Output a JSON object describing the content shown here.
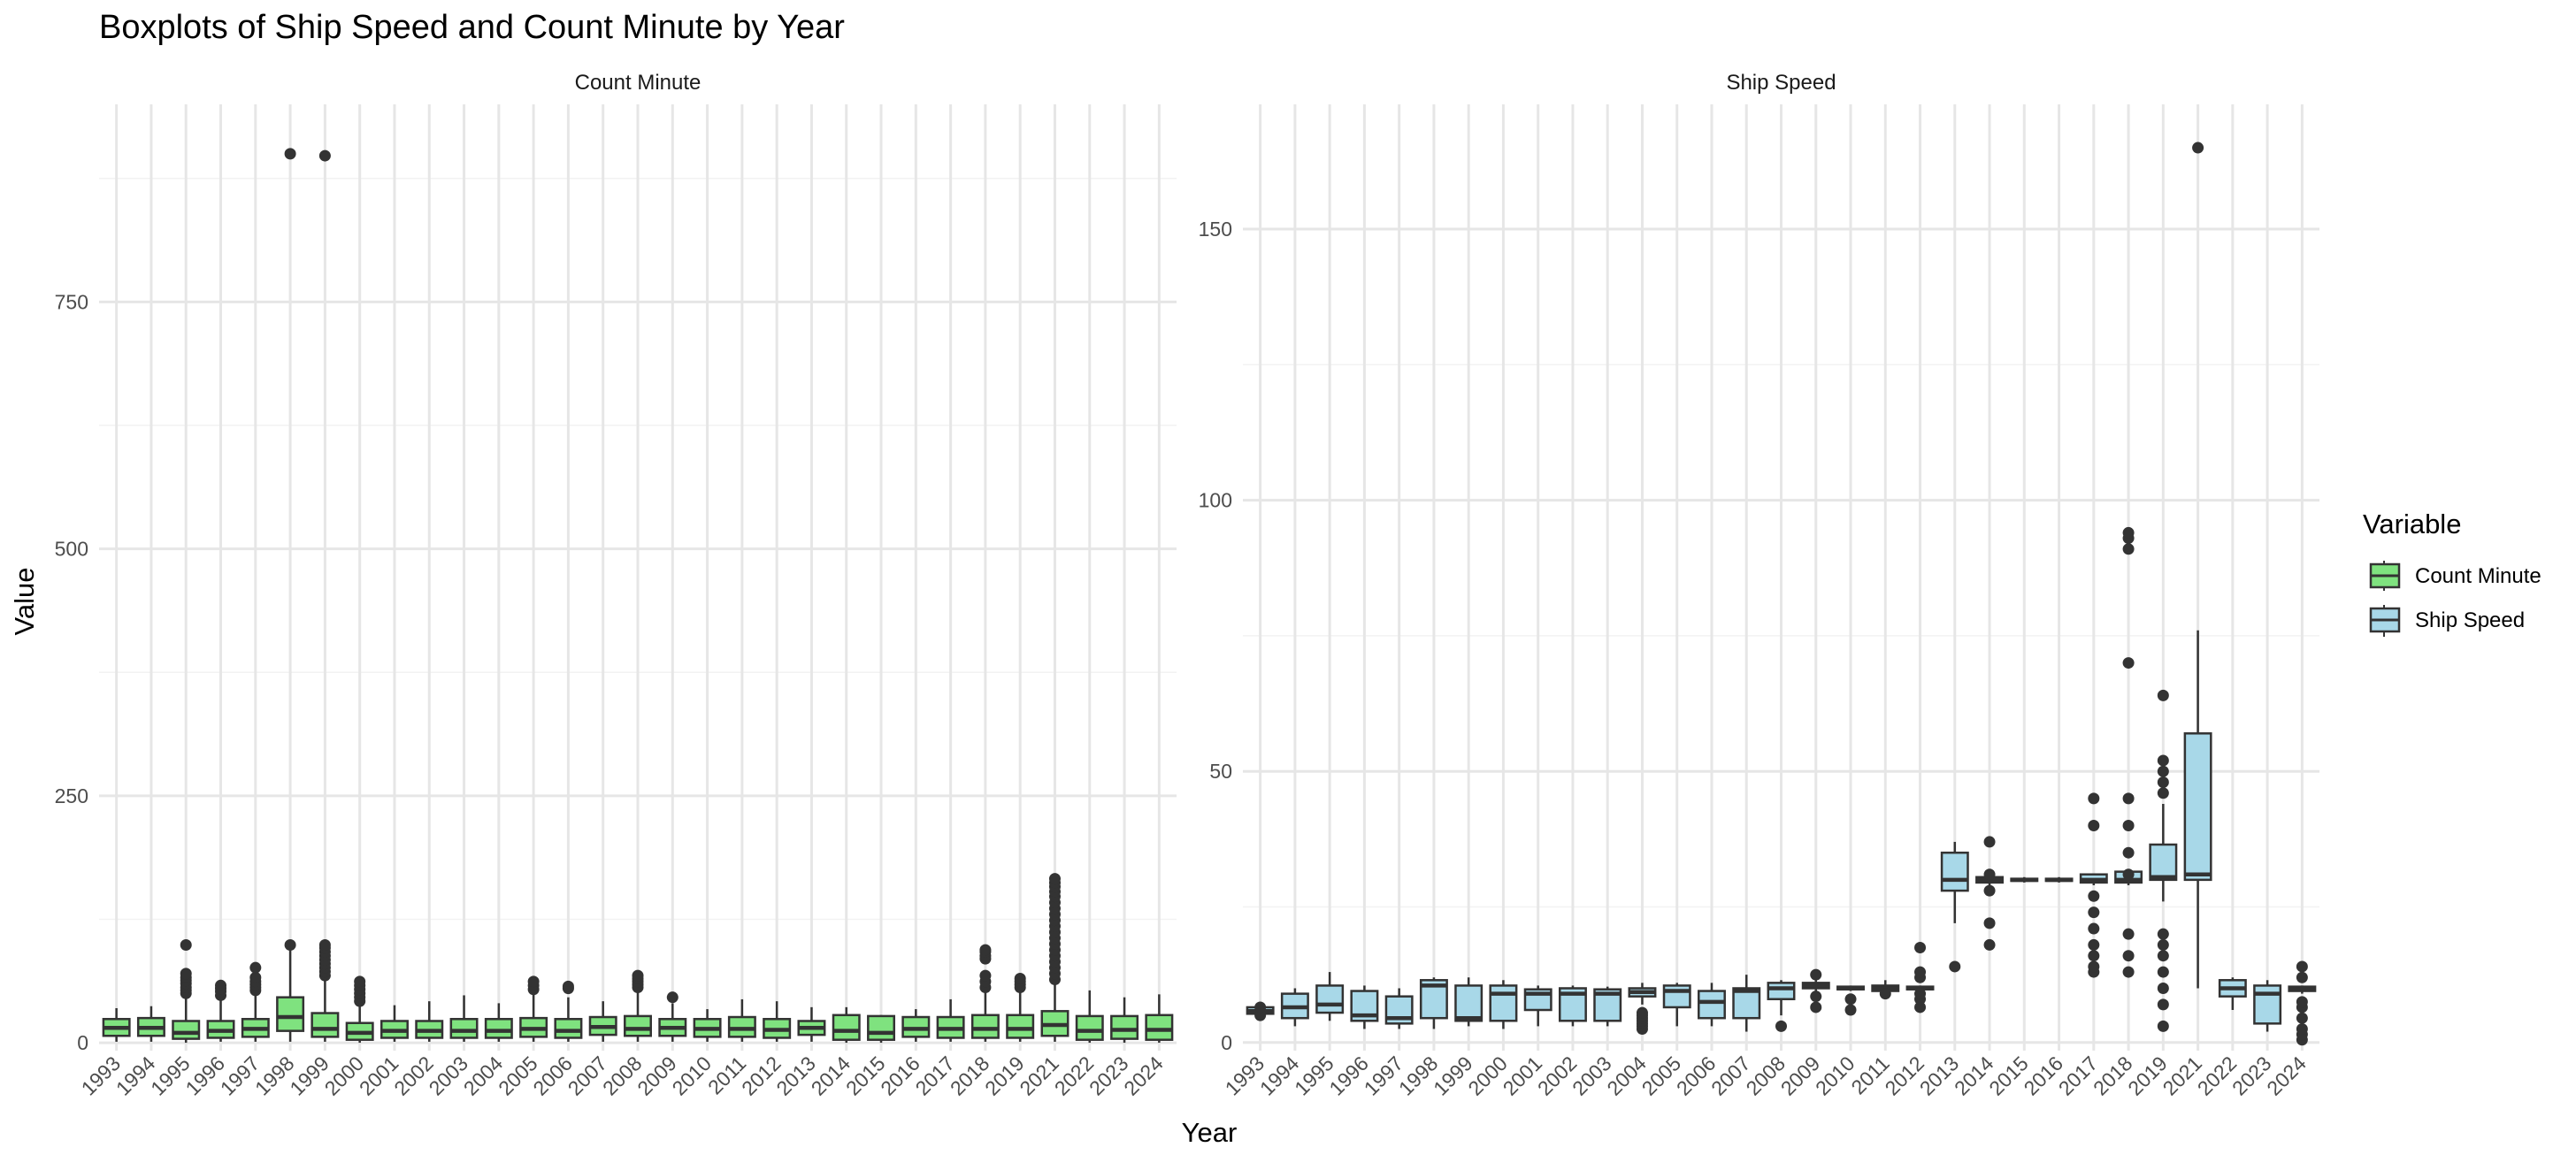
{
  "title": "Boxplots of Ship Speed and Count Minute by Year",
  "xlabel": "Year",
  "ylabel": "Value",
  "legend": {
    "title": "Variable",
    "placement": "right",
    "items": [
      {
        "label": "Count Minute",
        "color": "#7fe27f"
      },
      {
        "label": "Ship Speed",
        "color": "#a8d8e8"
      }
    ]
  },
  "chart_data": [
    {
      "type": "boxplot",
      "facet": "Count Minute",
      "fill": "#7fe27f",
      "ylim": [
        -8,
        950
      ],
      "yticks": [
        0,
        250,
        500,
        750
      ],
      "categories": [
        "1993",
        "1994",
        "1995",
        "1996",
        "1997",
        "1998",
        "1999",
        "2000",
        "2001",
        "2002",
        "2003",
        "2004",
        "2005",
        "2006",
        "2007",
        "2008",
        "2009",
        "2010",
        "2011",
        "2012",
        "2013",
        "2014",
        "2015",
        "2016",
        "2017",
        "2018",
        "2019",
        "2021",
        "2022",
        "2023",
        "2024"
      ],
      "boxes": [
        {
          "q1": 7,
          "median": 15,
          "q3": 24,
          "lo": 1,
          "hi": 35,
          "outliers": []
        },
        {
          "q1": 7,
          "median": 15,
          "q3": 25,
          "lo": 1,
          "hi": 37,
          "outliers": []
        },
        {
          "q1": 4,
          "median": 10,
          "q3": 22,
          "lo": 0,
          "hi": 46,
          "outliers": [
            50,
            53,
            56,
            60,
            63,
            66,
            70,
            99
          ]
        },
        {
          "q1": 5,
          "median": 12,
          "q3": 22,
          "lo": 1,
          "hi": 45,
          "outliers": [
            48,
            52,
            55,
            58
          ]
        },
        {
          "q1": 6,
          "median": 14,
          "q3": 24,
          "lo": 1,
          "hi": 50,
          "outliers": [
            53,
            56,
            59,
            62,
            66,
            76
          ]
        },
        {
          "q1": 12,
          "median": 26,
          "q3": 46,
          "lo": 1,
          "hi": 95,
          "outliers": [
            99,
            900
          ]
        },
        {
          "q1": 6,
          "median": 14,
          "q3": 30,
          "lo": 1,
          "hi": 65,
          "outliers": [
            68,
            72,
            76,
            80,
            84,
            88,
            92,
            96,
            99,
            898
          ]
        },
        {
          "q1": 3,
          "median": 10,
          "q3": 20,
          "lo": 0,
          "hi": 38,
          "outliers": [
            42,
            46,
            50,
            54,
            58,
            62
          ]
        },
        {
          "q1": 5,
          "median": 12,
          "q3": 22,
          "lo": 1,
          "hi": 38,
          "outliers": []
        },
        {
          "q1": 5,
          "median": 12,
          "q3": 22,
          "lo": 1,
          "hi": 42,
          "outliers": []
        },
        {
          "q1": 5,
          "median": 12,
          "q3": 24,
          "lo": 1,
          "hi": 48,
          "outliers": []
        },
        {
          "q1": 5,
          "median": 12,
          "q3": 24,
          "lo": 1,
          "hi": 40,
          "outliers": []
        },
        {
          "q1": 6,
          "median": 14,
          "q3": 25,
          "lo": 1,
          "hi": 50,
          "outliers": [
            54,
            58,
            62
          ]
        },
        {
          "q1": 5,
          "median": 12,
          "q3": 24,
          "lo": 1,
          "hi": 46,
          "outliers": [
            55,
            57
          ]
        },
        {
          "q1": 8,
          "median": 16,
          "q3": 26,
          "lo": 1,
          "hi": 42,
          "outliers": []
        },
        {
          "q1": 7,
          "median": 14,
          "q3": 27,
          "lo": 1,
          "hi": 54,
          "outliers": [
            56,
            59,
            62,
            65,
            68
          ]
        },
        {
          "q1": 7,
          "median": 15,
          "q3": 24,
          "lo": 1,
          "hi": 40,
          "outliers": [
            46
          ]
        },
        {
          "q1": 6,
          "median": 14,
          "q3": 24,
          "lo": 1,
          "hi": 34,
          "outliers": []
        },
        {
          "q1": 6,
          "median": 14,
          "q3": 26,
          "lo": 1,
          "hi": 44,
          "outliers": []
        },
        {
          "q1": 5,
          "median": 13,
          "q3": 24,
          "lo": 1,
          "hi": 42,
          "outliers": []
        },
        {
          "q1": 8,
          "median": 15,
          "q3": 22,
          "lo": 1,
          "hi": 36,
          "outliers": []
        },
        {
          "q1": 3,
          "median": 12,
          "q3": 28,
          "lo": 0,
          "hi": 36,
          "outliers": []
        },
        {
          "q1": 3,
          "median": 10,
          "q3": 27,
          "lo": 0,
          "hi": 28,
          "outliers": []
        },
        {
          "q1": 6,
          "median": 14,
          "q3": 26,
          "lo": 1,
          "hi": 34,
          "outliers": []
        },
        {
          "q1": 5,
          "median": 14,
          "q3": 26,
          "lo": 1,
          "hi": 44,
          "outliers": []
        },
        {
          "q1": 5,
          "median": 14,
          "q3": 28,
          "lo": 1,
          "hi": 52,
          "outliers": [
            56,
            62,
            68,
            85,
            88,
            92,
            94
          ]
        },
        {
          "q1": 5,
          "median": 14,
          "q3": 28,
          "lo": 1,
          "hi": 52,
          "outliers": [
            56,
            59,
            62,
            65
          ]
        },
        {
          "q1": 7,
          "median": 18,
          "q3": 32,
          "lo": 1,
          "hi": 60,
          "outliers": [
            64,
            70,
            76,
            82,
            88,
            94,
            100,
            106,
            112,
            118,
            124,
            130,
            136,
            142,
            148,
            153,
            158,
            162,
            166
          ]
        },
        {
          "q1": 3,
          "median": 12,
          "q3": 27,
          "lo": 0,
          "hi": 53,
          "outliers": []
        },
        {
          "q1": 4,
          "median": 13,
          "q3": 27,
          "lo": 0,
          "hi": 46,
          "outliers": []
        },
        {
          "q1": 3,
          "median": 13,
          "q3": 28,
          "lo": 0,
          "hi": 49,
          "outliers": []
        }
      ]
    },
    {
      "type": "boxplot",
      "facet": "Ship Speed",
      "fill": "#a8d8e8",
      "ylim": [
        -1.5,
        173
      ],
      "yticks": [
        0,
        50,
        100,
        150
      ],
      "categories": [
        "1993",
        "1994",
        "1995",
        "1996",
        "1997",
        "1998",
        "1999",
        "2000",
        "2001",
        "2002",
        "2003",
        "2004",
        "2005",
        "2006",
        "2007",
        "2008",
        "2009",
        "2010",
        "2011",
        "2012",
        "2013",
        "2014",
        "2015",
        "2016",
        "2017",
        "2018",
        "2019",
        "2021",
        "2022",
        "2023",
        "2024"
      ],
      "boxes": [
        {
          "q1": 5.3,
          "median": 5.8,
          "q3": 6.5,
          "lo": 5,
          "hi": 7,
          "outliers": [
            5,
            6.5
          ]
        },
        {
          "q1": 4.5,
          "median": 6.5,
          "q3": 9,
          "lo": 3,
          "hi": 10,
          "outliers": []
        },
        {
          "q1": 5.5,
          "median": 7,
          "q3": 10.5,
          "lo": 4,
          "hi": 13,
          "outliers": []
        },
        {
          "q1": 4,
          "median": 5,
          "q3": 9.5,
          "lo": 2.5,
          "hi": 10.5,
          "outliers": []
        },
        {
          "q1": 3.5,
          "median": 4.5,
          "q3": 8.5,
          "lo": 2.5,
          "hi": 10,
          "outliers": []
        },
        {
          "q1": 4.5,
          "median": 10.5,
          "q3": 11.5,
          "lo": 2.5,
          "hi": 12,
          "outliers": []
        },
        {
          "q1": 4,
          "median": 4.5,
          "q3": 10.5,
          "lo": 3,
          "hi": 12,
          "outliers": []
        },
        {
          "q1": 4,
          "median": 9,
          "q3": 10.5,
          "lo": 2.5,
          "hi": 11.5,
          "outliers": []
        },
        {
          "q1": 6,
          "median": 9,
          "q3": 9.8,
          "lo": 3,
          "hi": 10.5,
          "outliers": []
        },
        {
          "q1": 4,
          "median": 9,
          "q3": 10,
          "lo": 3,
          "hi": 10.5,
          "outliers": []
        },
        {
          "q1": 4,
          "median": 9,
          "q3": 9.8,
          "lo": 3,
          "hi": 10.3,
          "outliers": []
        },
        {
          "q1": 8.5,
          "median": 9.3,
          "q3": 10,
          "lo": 7,
          "hi": 11,
          "outliers": [
            2.5,
            3,
            3.5,
            4,
            4.5,
            5,
            5.5
          ]
        },
        {
          "q1": 6.5,
          "median": 9.5,
          "q3": 10.5,
          "lo": 3,
          "hi": 11,
          "outliers": []
        },
        {
          "q1": 4.5,
          "median": 7.5,
          "q3": 9.5,
          "lo": 3,
          "hi": 11,
          "outliers": []
        },
        {
          "q1": 4.5,
          "median": 9.5,
          "q3": 10,
          "lo": 2,
          "hi": 12.5,
          "outliers": []
        },
        {
          "q1": 8,
          "median": 10,
          "q3": 11,
          "lo": 5,
          "hi": 11.5,
          "outliers": [
            3
          ]
        },
        {
          "q1": 10,
          "median": 10.5,
          "q3": 11,
          "lo": 9,
          "hi": 11.5,
          "outliers": [
            6.5,
            8.5,
            12.5
          ]
        },
        {
          "q1": 9.8,
          "median": 10,
          "q3": 10.3,
          "lo": 9.5,
          "hi": 10.5,
          "outliers": [
            6,
            8
          ]
        },
        {
          "q1": 9.5,
          "median": 10,
          "q3": 10.5,
          "lo": 9,
          "hi": 11.5,
          "outliers": [
            9
          ]
        },
        {
          "q1": 9.8,
          "median": 10,
          "q3": 10.3,
          "lo": 9.5,
          "hi": 10.5,
          "outliers": [
            6.5,
            8,
            9,
            12,
            13,
            17.5
          ]
        },
        {
          "q1": 28,
          "median": 30,
          "q3": 35,
          "lo": 22,
          "hi": 37,
          "outliers": [
            14
          ]
        },
        {
          "q1": 29.5,
          "median": 30,
          "q3": 30.5,
          "lo": 29,
          "hi": 31,
          "outliers": [
            18,
            22,
            28,
            31,
            37
          ]
        },
        {
          "q1": 29.8,
          "median": 30,
          "q3": 30.2,
          "lo": 29.5,
          "hi": 30.5,
          "outliers": []
        },
        {
          "q1": 29.8,
          "median": 30,
          "q3": 30.2,
          "lo": 29.5,
          "hi": 30.5,
          "outliers": []
        },
        {
          "q1": 29.5,
          "median": 30,
          "q3": 31,
          "lo": 29,
          "hi": 31,
          "outliers": [
            13,
            14,
            16,
            18,
            21,
            24,
            27,
            40,
            45
          ]
        },
        {
          "q1": 29.5,
          "median": 30,
          "q3": 31.5,
          "lo": 29,
          "hi": 32,
          "outliers": [
            13,
            16,
            20,
            31,
            35,
            40,
            45,
            70,
            91,
            93,
            94
          ]
        },
        {
          "q1": 30,
          "median": 30.5,
          "q3": 36.5,
          "lo": 26,
          "hi": 44,
          "outliers": [
            3,
            7,
            10,
            13,
            16,
            18,
            20,
            46,
            48,
            50,
            52,
            64
          ]
        },
        {
          "q1": 30,
          "median": 31,
          "q3": 57,
          "lo": 10,
          "hi": 76,
          "outliers": [
            165
          ]
        },
        {
          "q1": 8.5,
          "median": 10,
          "q3": 11.5,
          "lo": 6,
          "hi": 12,
          "outliers": []
        },
        {
          "q1": 3.5,
          "median": 9,
          "q3": 10.5,
          "lo": 2,
          "hi": 11.5,
          "outliers": []
        },
        {
          "q1": 9.5,
          "median": 10,
          "q3": 10.3,
          "lo": 9,
          "hi": 10.5,
          "outliers": [
            0.5,
            1.5,
            2.5,
            4.5,
            6.5,
            7.5,
            12,
            14
          ]
        }
      ]
    }
  ]
}
